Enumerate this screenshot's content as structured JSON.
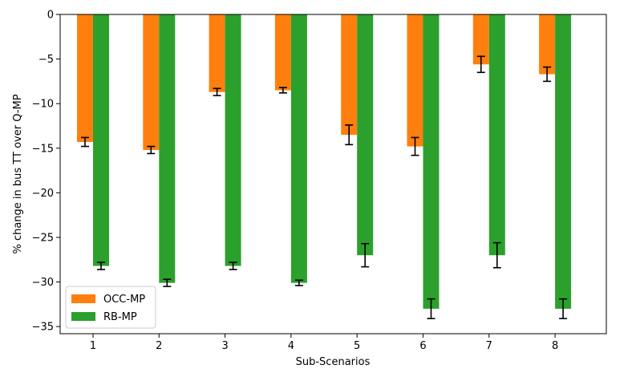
{
  "chart_data": {
    "type": "bar",
    "xlabel": "Sub-Scenarios",
    "ylabel": "% change in bus TT over Q-MP",
    "categories": [
      "1",
      "2",
      "3",
      "4",
      "5",
      "6",
      "7",
      "8"
    ],
    "ylim": [
      -35.8,
      0
    ],
    "yticks": [
      0,
      -5,
      -10,
      -15,
      -20,
      -25,
      -30,
      -35
    ],
    "ytick_labels": [
      "0",
      "−5",
      "−10",
      "−15",
      "−20",
      "−25",
      "−30",
      "−35"
    ],
    "series": [
      {
        "name": "OCC-MP",
        "color": "#ff7f0e",
        "values": [
          -14.3,
          -15.2,
          -8.7,
          -8.5,
          -13.5,
          -14.8,
          -5.6,
          -6.7
        ],
        "error": [
          0.5,
          0.4,
          0.4,
          0.3,
          1.1,
          1.0,
          0.9,
          0.8
        ]
      },
      {
        "name": "RB-MP",
        "color": "#2ca02c",
        "values": [
          -28.2,
          -30.1,
          -28.2,
          -30.1,
          -27.0,
          -33.0,
          -27.0,
          -33.0
        ],
        "error": [
          0.4,
          0.4,
          0.4,
          0.3,
          1.3,
          1.1,
          1.4,
          1.1
        ]
      }
    ],
    "legend": {
      "position": "lower-left",
      "entries": [
        "OCC-MP",
        "RB-MP"
      ]
    },
    "grid": false
  }
}
